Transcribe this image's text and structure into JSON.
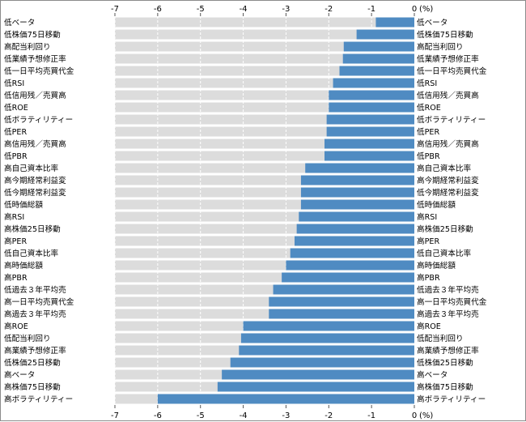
{
  "chart_data": {
    "type": "bar",
    "orientation": "horizontal",
    "unit": "(%)",
    "xlim": [
      -7,
      0
    ],
    "ticks": [
      -7,
      -6,
      -5,
      -4,
      -3,
      -2,
      -1,
      0
    ],
    "tick_labels": [
      "-7",
      "-6",
      "-5",
      "-4",
      "-3",
      "-2",
      "-1",
      "0"
    ],
    "grid": true,
    "bar_color": "#4f8bc2",
    "track_color": "#dcdcdc",
    "categories": [
      "低ベータ",
      "低株価75日移動",
      "高配当利回り",
      "低業績予想修正率",
      "低一日平均売買代金",
      "低RSI",
      "低信用残／売買高",
      "低ROE",
      "低ボラティリティー",
      "低PER",
      "高信用残／売買高",
      "低PBR",
      "高自己資本比率",
      "高今期経常利益変",
      "低今期経常利益変",
      "低時価総額",
      "高RSI",
      "高株価25日移動",
      "高PER",
      "低自己資本比率",
      "高時価総額",
      "高PBR",
      "低過去３年平均売",
      "高一日平均売買代金",
      "高過去３年平均売",
      "高ROE",
      "低配当利回り",
      "高業績予想修正率",
      "低株価25日移動",
      "高ベータ",
      "高株価75日移動",
      "高ボラティリティー"
    ],
    "values": [
      -0.9,
      -1.35,
      -1.65,
      -1.67,
      -1.75,
      -1.9,
      -2.0,
      -2.0,
      -2.05,
      -2.05,
      -2.1,
      -2.1,
      -2.55,
      -2.65,
      -2.65,
      -2.65,
      -2.7,
      -2.75,
      -2.8,
      -2.9,
      -3.0,
      -3.1,
      -3.3,
      -3.4,
      -3.4,
      -4.0,
      -4.05,
      -4.1,
      -4.3,
      -4.5,
      -4.6,
      -6.0
    ]
  }
}
